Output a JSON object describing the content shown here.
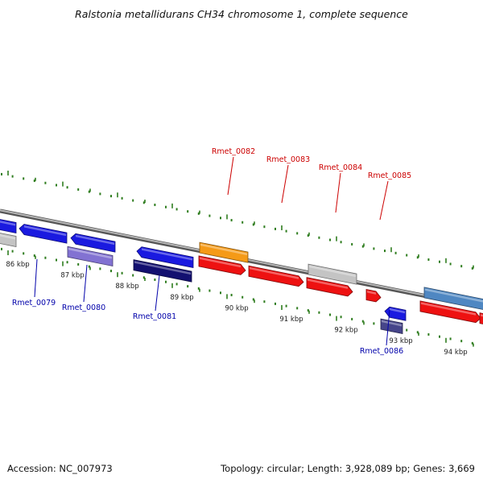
{
  "title": "Ralstonia metallidurans CH34 chromosome 1, complete sequence",
  "footer": {
    "accession": "Accession: NC_007973",
    "summary": "Topology: circular; Length: 3,928,089 bp; Genes: 3,669"
  },
  "colors": {
    "backbone": "#8a8a8a",
    "tick": "#2f7d1f",
    "forward_label": "#cc0000",
    "reverse_label": "#0000aa",
    "red_gene": "#ee1111",
    "blue_gene": "#1a1ae0",
    "orange_gene": "#f59a17",
    "gray_gene": "#c4c4c4",
    "purple_gene": "#8272d2",
    "navy_gene": "#131070",
    "steel_gene": "#4f87c2",
    "slate_gene": "#46458a"
  },
  "tick_labels": [
    "86 kbp",
    "87 kbp",
    "88 kbp",
    "89 kbp",
    "90 kbp",
    "91 kbp",
    "92 kbp",
    "93 kbp",
    "94 kbp"
  ],
  "gene_labels_forward": [
    "Rmet_0082",
    "Rmet_0083",
    "Rmet_0084",
    "Rmet_0085"
  ],
  "gene_labels_reverse": [
    "Rmet_0079",
    "Rmet_0080",
    "Rmet_0081",
    "Rmet_0086"
  ]
}
